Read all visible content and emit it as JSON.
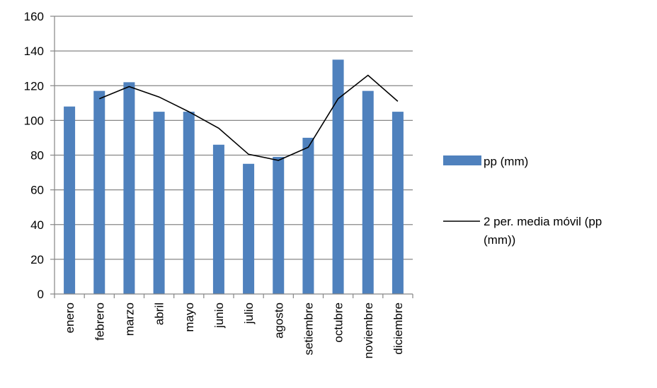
{
  "chart_data": {
    "type": "bar",
    "categories": [
      "enero",
      "febrero",
      "marzo",
      "abril",
      "mayo",
      "junio",
      "julio",
      "agosto",
      "setiembre",
      "octubre",
      "noviembre",
      "diciembre"
    ],
    "series": [
      {
        "name": "pp (mm)",
        "kind": "bar",
        "color": "#4f81bd",
        "values": [
          108,
          117,
          122,
          105,
          105,
          86,
          75,
          79,
          90,
          135,
          117,
          105
        ]
      },
      {
        "name": "2 per. media móvil (pp (mm))",
        "kind": "line",
        "color": "#000000",
        "values": [
          null,
          112.5,
          119.5,
          113.5,
          105,
          95.5,
          80.5,
          77,
          84.5,
          112.5,
          126,
          111
        ]
      }
    ],
    "title": "",
    "xlabel": "",
    "ylabel": "",
    "ylim": [
      0,
      160
    ],
    "yticks": [
      0,
      20,
      40,
      60,
      80,
      100,
      120,
      140,
      160
    ],
    "grid": true,
    "legend": "right",
    "legend_lines": [
      [
        "pp (mm)"
      ],
      [
        "2 per. media móvil (pp",
        "(mm))"
      ]
    ]
  }
}
